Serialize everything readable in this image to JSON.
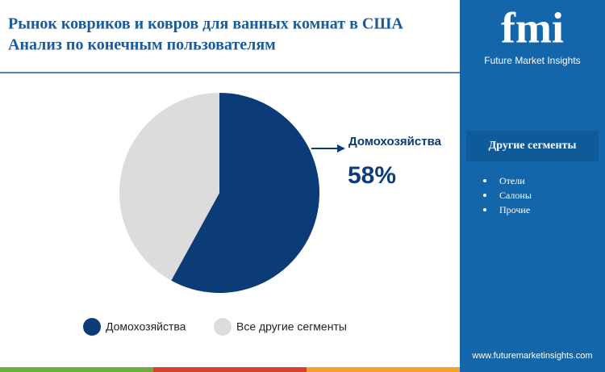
{
  "chart_data": {
    "type": "pie",
    "title": "Рынок ковриков и ковров для ванных комнат в США",
    "subtitle": "Анализ по конечным пользователям",
    "categories": [
      "Домохозяйства",
      "Все другие сегменты"
    ],
    "values": [
      58,
      42
    ],
    "value_labels": [
      "58%",
      null
    ],
    "colors": [
      "#0c3c78",
      "#dcdcdc"
    ]
  },
  "sidebar": {
    "logo_text": "fmi",
    "logo_subtitle": "Future Market Insights",
    "heading": "Другие сегменты",
    "items": [
      "Отели",
      "Салоны",
      "Прочие"
    ],
    "website": "www.futuremarketinsights.com"
  }
}
